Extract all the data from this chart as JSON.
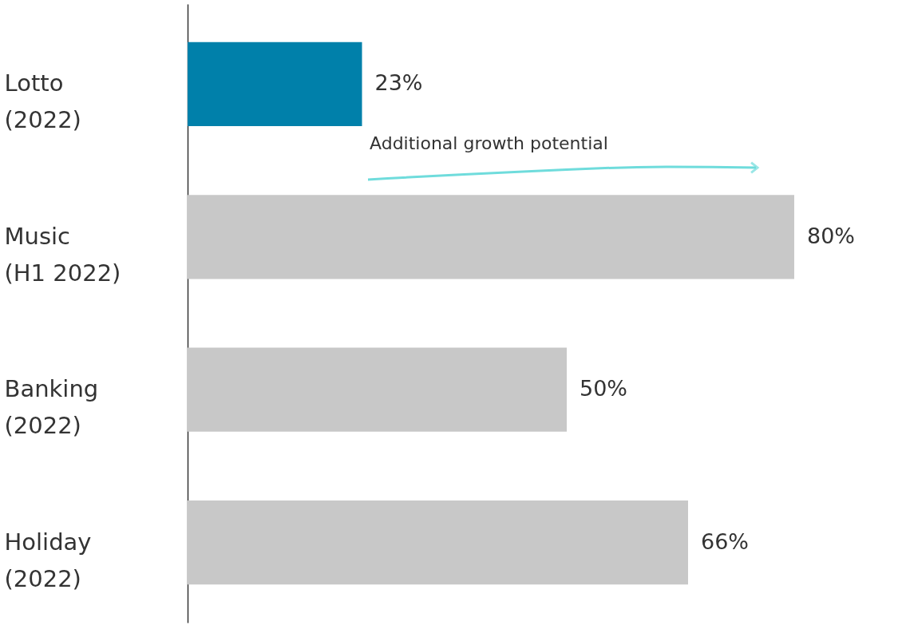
{
  "chart_data": {
    "type": "bar",
    "orientation": "horizontal",
    "categories": [
      "Lotto\n(2022)",
      "Music\n(H1 2022)",
      "Banking\n(2022)",
      "Holiday\n(2022)"
    ],
    "values": [
      23,
      80,
      50,
      66
    ],
    "colors": [
      "#0080aa",
      "#c8c8c8",
      "#c8c8c8",
      "#c8c8c8"
    ],
    "value_labels": [
      "23%",
      "80%",
      "50%",
      "66%"
    ],
    "annotations": [
      "Additional growth potential"
    ],
    "grid": false
  }
}
